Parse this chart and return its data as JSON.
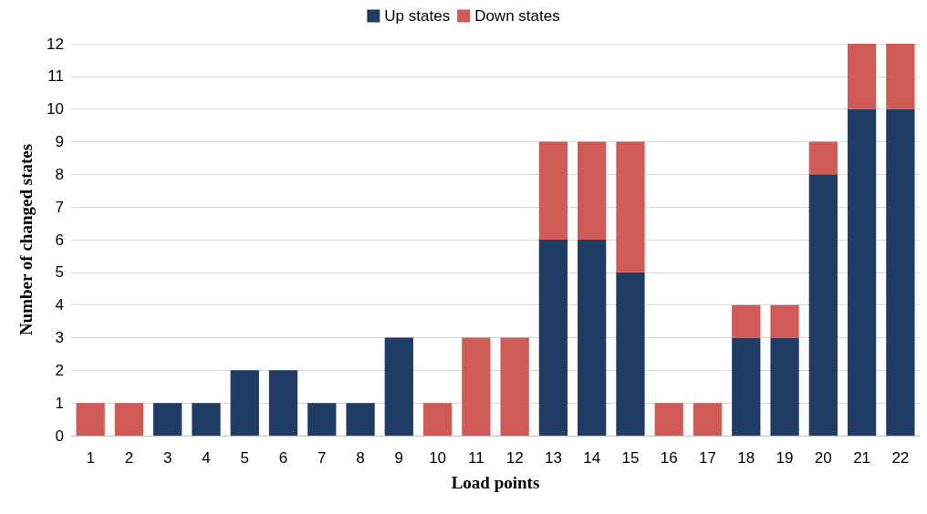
{
  "chart_data": {
    "type": "bar",
    "stacked": true,
    "xlabel": "Load points",
    "ylabel": "Number of changed states",
    "categories": [
      "1",
      "2",
      "3",
      "4",
      "5",
      "6",
      "7",
      "8",
      "9",
      "10",
      "11",
      "12",
      "13",
      "14",
      "15",
      "16",
      "17",
      "18",
      "19",
      "20",
      "21",
      "22"
    ],
    "series": [
      {
        "name": "Up states",
        "color": "#1f3d64",
        "values": [
          0,
          0,
          1,
          1,
          2,
          2,
          1,
          1,
          3,
          0,
          0,
          0,
          6,
          6,
          5,
          0,
          0,
          3,
          3,
          8,
          10,
          10
        ]
      },
      {
        "name": "Down states",
        "color": "#d05a56",
        "values": [
          1,
          1,
          0,
          0,
          0,
          0,
          0,
          0,
          0,
          1,
          3,
          3,
          3,
          3,
          4,
          1,
          1,
          1,
          1,
          1,
          2,
          2
        ]
      }
    ],
    "ylim": [
      0,
      12
    ],
    "yticks": [
      0,
      1,
      2,
      3,
      4,
      5,
      6,
      7,
      8,
      9,
      10,
      11,
      12
    ],
    "grid": "y",
    "legend": "top"
  }
}
